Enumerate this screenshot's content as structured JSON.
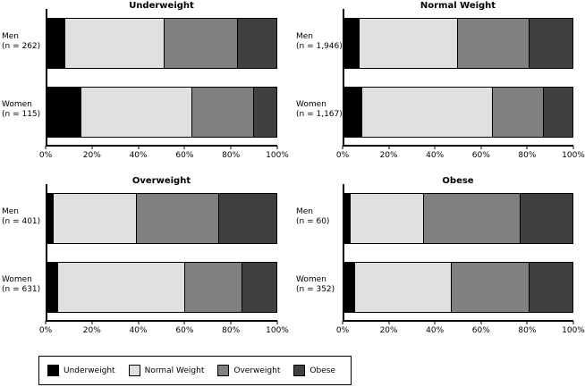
{
  "figure": {
    "background": "#ffffff",
    "accent_black": "#000000"
  },
  "chart_data": {
    "type": "bar",
    "subtype": "horizontal-stacked-100percent",
    "grid": false,
    "categories": [
      "Underweight",
      "Normal Weight",
      "Overweight",
      "Obese"
    ],
    "category_colors": [
      "#000000",
      "#e0e0e0",
      "#808080",
      "#404040"
    ],
    "xlim": [
      0,
      100
    ],
    "x_ticks": [
      0,
      20,
      40,
      60,
      80,
      100
    ],
    "x_tick_labels": [
      "0%",
      "20%",
      "40%",
      "60%",
      "80%",
      "100%"
    ],
    "panels": [
      {
        "title": "Underweight",
        "rows": [
          {
            "label": "Men",
            "n_label": "(n = 262)",
            "values": [
              8,
              43,
              32,
              17
            ]
          },
          {
            "label": "Women",
            "n_label": "(n = 115)",
            "values": [
              15,
              48,
              27,
              10
            ]
          }
        ]
      },
      {
        "title": "Normal Weight",
        "rows": [
          {
            "label": "Men",
            "n_label": "(n = 1,946)",
            "values": [
              7,
              43,
              31,
              19
            ]
          },
          {
            "label": "Women",
            "n_label": "(n = 1,167)",
            "values": [
              8,
              57,
              22,
              13
            ]
          }
        ]
      },
      {
        "title": "Overweight",
        "rows": [
          {
            "label": "Men",
            "n_label": "(n = 401)",
            "values": [
              3,
              36,
              36,
              25
            ]
          },
          {
            "label": "Women",
            "n_label": "(n = 631)",
            "values": [
              5,
              55,
              25,
              15
            ]
          }
        ]
      },
      {
        "title": "Obese",
        "rows": [
          {
            "label": "Men",
            "n_label": "(n = 60)",
            "values": [
              3,
              32,
              42,
              23
            ]
          },
          {
            "label": "Women",
            "n_label": "(n = 352)",
            "values": [
              5,
              42,
              34,
              19
            ]
          }
        ]
      }
    ],
    "legend": {
      "position": "bottom-left",
      "items": [
        {
          "label": "Underweight",
          "color": "#000000"
        },
        {
          "label": "Normal Weight",
          "color": "#e0e0e0"
        },
        {
          "label": "Overweight",
          "color": "#808080"
        },
        {
          "label": "Obese",
          "color": "#404040"
        }
      ]
    }
  }
}
